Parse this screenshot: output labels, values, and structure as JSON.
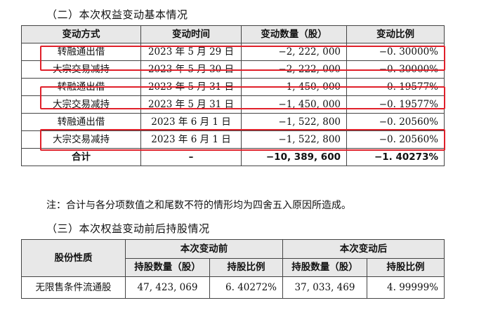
{
  "section2": {
    "title": "（二）本次权益变动基本情况",
    "headers": [
      "变动方式",
      "变动时间",
      "变动数量（股）",
      "变动比例"
    ],
    "rows": [
      [
        "转融通出借",
        "2023 年 5 月 29 日",
        "−2, 222, 000",
        "−0. 30000%"
      ],
      [
        "大宗交易减持",
        "2023 年 5 月 30 日",
        "−2, 222, 000",
        "−0. 30000%"
      ],
      [
        "转融通出借",
        "2023 年 5 月 31 日",
        "−1, 450, 000",
        "−0. 19577%"
      ],
      [
        "大宗交易减持",
        "2023 年 5 月 31 日",
        "−1, 450, 000",
        "−0. 19577%"
      ],
      [
        "转融通出借",
        "2023 年 6 月 1 日",
        "−1, 522, 800",
        "−0. 20560%"
      ],
      [
        "大宗交易减持",
        "2023 年 6 月 1 日",
        "−1, 522, 800",
        "−0. 20560%"
      ]
    ],
    "total": [
      "合计",
      "–",
      "−10, 389, 600",
      "−1. 40273%"
    ],
    "note": "注：合计与各分项数值之和尾数不符的情形均为四舍五入原因所造成。"
  },
  "section3": {
    "title": "（三）本次权益变动前后持股情况",
    "col_nature": "股份性质",
    "group_before": "本次变动前",
    "group_after": "本次变动后",
    "sub_headers": [
      "持股数量（股）",
      "持股比例",
      "持股数量（股）",
      "持股比例"
    ],
    "row": [
      "无限售条件流通股",
      "47, 423, 069",
      "6. 40272%",
      "37, 033, 469",
      "4. 99999%"
    ]
  },
  "highlight_color": "#e0202a"
}
